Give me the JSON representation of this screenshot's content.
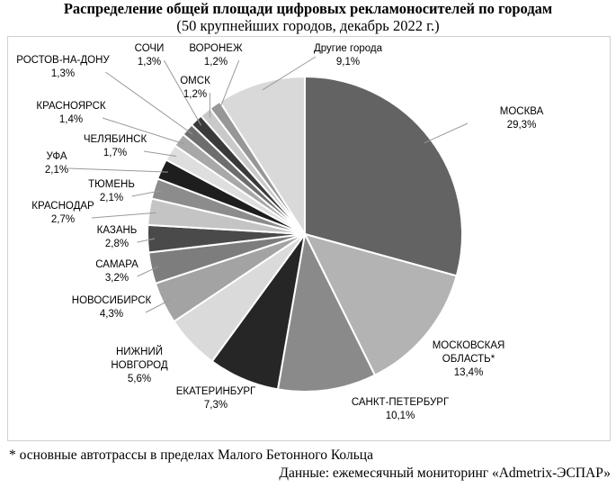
{
  "title": "Распределение общей площади цифровых рекламоносителей по городам",
  "subtitle": "(50 крупнейших городов, декабрь 2022 г.)",
  "footnote": "* основные автотрассы в пределах Малого Бетонного Кольца",
  "source": "Данные: ежемесячный мониторинг «Admetrix-ЭСПАР»",
  "chart_data": {
    "type": "pie",
    "title": "Распределение общей площади цифровых рекламоносителей по городам",
    "subtitle": "(50 крупнейших городов, декабрь 2022 г.)",
    "slices": [
      {
        "label": "МОСКВА",
        "value": 29.3,
        "value_label": "29,3%",
        "color": "#636363"
      },
      {
        "label": "МОСКОВСКАЯ ОБЛАСТЬ*",
        "value": 13.4,
        "value_label": "13,4%",
        "color": "#b3b3b3"
      },
      {
        "label": "САНКТ-ПЕТЕРБУРГ",
        "value": 10.1,
        "value_label": "10,1%",
        "color": "#8a8a8a"
      },
      {
        "label": "ЕКАТЕРИНБУРГ",
        "value": 7.3,
        "value_label": "7,3%",
        "color": "#262626"
      },
      {
        "label": "НИЖНИЙ НОВГОРОД",
        "value": 5.6,
        "value_label": "5,6%",
        "color": "#dadada"
      },
      {
        "label": "НОВОСИБИРСК",
        "value": 4.3,
        "value_label": "4,3%",
        "color": "#a3a3a3"
      },
      {
        "label": "САМАРА",
        "value": 3.2,
        "value_label": "3,2%",
        "color": "#7d7d7d"
      },
      {
        "label": "КАЗАНЬ",
        "value": 2.8,
        "value_label": "2,8%",
        "color": "#4a4a4a"
      },
      {
        "label": "КРАСНОДАР",
        "value": 2.7,
        "value_label": "2,7%",
        "color": "#c4c4c4"
      },
      {
        "label": "ТЮМЕНЬ",
        "value": 2.1,
        "value_label": "2,1%",
        "color": "#8c8c8c"
      },
      {
        "label": "УФА",
        "value": 2.1,
        "value_label": "2,1%",
        "color": "#1e1e1e"
      },
      {
        "label": "ЧЕЛЯБИНСК",
        "value": 1.7,
        "value_label": "1,7%",
        "color": "#dedede"
      },
      {
        "label": "КРАСНОЯРСК",
        "value": 1.4,
        "value_label": "1,4%",
        "color": "#a8a8a8"
      },
      {
        "label": "РОСТОВ-НА-ДОНУ",
        "value": 1.3,
        "value_label": "1,3%",
        "color": "#6e6e6e"
      },
      {
        "label": "СОЧИ",
        "value": 1.3,
        "value_label": "1,3%",
        "color": "#3a3a3a"
      },
      {
        "label": "ОМСК",
        "value": 1.2,
        "value_label": "1,2%",
        "color": "#c9c9c9"
      },
      {
        "label": "ВОРОНЕЖ",
        "value": 1.2,
        "value_label": "1,2%",
        "color": "#979797"
      },
      {
        "label": "Другие города",
        "value": 9.1,
        "value_label": "9,1%",
        "color": "#d9d9d9"
      }
    ]
  }
}
